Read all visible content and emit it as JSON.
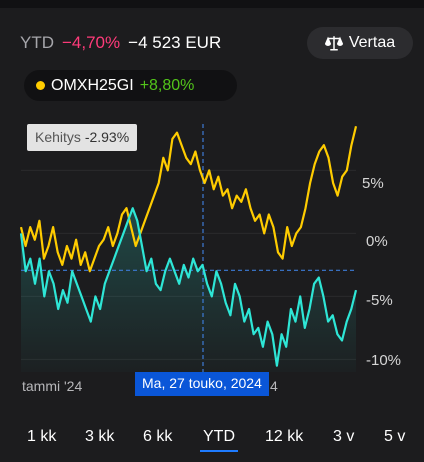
{
  "header": {
    "period_label": "YTD",
    "change_percent": "−4,70%",
    "change_amount": "−4 523 EUR"
  },
  "compare": {
    "label": "Vertaa",
    "icon": "scale-icon"
  },
  "index": {
    "name": "OMXH25GI",
    "change": "+8,80%",
    "dot_color": "#ffcc00"
  },
  "tooltip": {
    "label": "Kehitys",
    "value": "-2.93%"
  },
  "selected_date": "Ma, 27 touko, 2024",
  "x_axis": {
    "start_label": "tammi '24",
    "end_label": "4"
  },
  "y_axis": {
    "labels": [
      "5%",
      "0%",
      "-5%",
      "-10%"
    ]
  },
  "colors": {
    "portfolio": "#2ee6d6",
    "index": "#ffcc00",
    "negative": "#ff3b7a",
    "positive": "#52c41a",
    "accent": "#1e7bff"
  },
  "tabs": [
    {
      "label": "1 kk",
      "active": false
    },
    {
      "label": "3 kk",
      "active": false
    },
    {
      "label": "6 kk",
      "active": false
    },
    {
      "label": "YTD",
      "active": true
    },
    {
      "label": "12 kk",
      "active": false
    },
    {
      "label": "3 v",
      "active": false
    },
    {
      "label": "5 v",
      "active": false
    }
  ],
  "chart_data": {
    "type": "line",
    "yunit": "%",
    "ylim": [
      -11,
      9
    ],
    "yticks": [
      5,
      0,
      -5,
      -10
    ],
    "reference_line": -2.93,
    "series": [
      {
        "name": "OMXH25GI",
        "color": "#ffcc00",
        "values": [
          0.5,
          -1,
          0.5,
          -0.5,
          1,
          -2,
          -1,
          0.5,
          -1.5,
          -2.5,
          -1,
          -2,
          -0.5,
          -2.5,
          -1.5,
          -3,
          -2,
          -1,
          -0.5,
          0.5,
          -1,
          0,
          1.5,
          2,
          0.5,
          -1,
          0,
          1,
          2,
          3,
          4,
          6,
          5,
          7.5,
          8,
          7,
          6,
          5.5,
          6.5,
          5,
          4,
          5,
          3.5,
          4.5,
          3,
          3.5,
          2,
          3,
          2.5,
          3.5,
          2,
          1,
          1.5,
          0,
          1.5,
          0.5,
          -1.5,
          -2,
          0.5,
          -1,
          0,
          0.5,
          2,
          4,
          5.5,
          6.5,
          7,
          6,
          4,
          3,
          4.5,
          5,
          7,
          8.5
        ]
      },
      {
        "name": "",
        "color": "#2ee6d6",
        "values": [
          0,
          -3,
          -2,
          -4,
          -2,
          -5,
          -3,
          -4,
          -6,
          -4.5,
          -5.5,
          -3,
          -4,
          -5,
          -6,
          -7,
          -5,
          -6,
          -4,
          -3,
          -2,
          -1,
          0,
          1,
          2,
          1,
          -1,
          -3,
          -2,
          -4,
          -4.5,
          -3,
          -2,
          -3,
          -4,
          -2.5,
          -3.5,
          -2,
          -3,
          -2.5,
          -4,
          -5,
          -3,
          -4,
          -5.5,
          -6.5,
          -4,
          -5,
          -7,
          -6,
          -8,
          -7.5,
          -9,
          -7,
          -8,
          -10.5,
          -8,
          -9,
          -6,
          -7,
          -5,
          -7.5,
          -6,
          -4,
          -3.5,
          -5,
          -7,
          -6.5,
          -8,
          -8.5,
          -7,
          -6,
          -4.5
        ]
      }
    ]
  }
}
